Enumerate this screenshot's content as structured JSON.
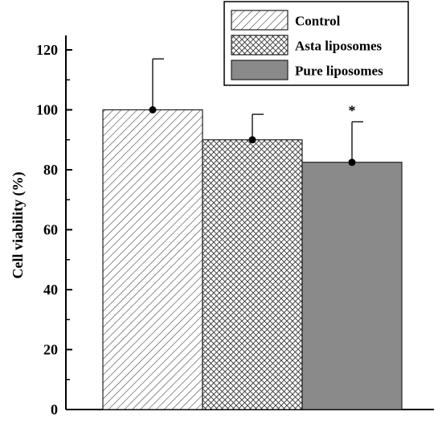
{
  "chart_data": {
    "type": "bar",
    "title": "",
    "xlabel": "",
    "ylabel": "Cell viability (%)",
    "ylim": [
      0,
      120
    ],
    "yticks": [
      0,
      20,
      40,
      60,
      80,
      100,
      120
    ],
    "legend_position": "top-right",
    "series": [
      {
        "name": "Control",
        "value": 100,
        "error": 17,
        "pattern": "diagonal-hatch",
        "color": "#ffffff",
        "annotation": ""
      },
      {
        "name": "Asta liposomes",
        "value": 90,
        "error": 8.5,
        "pattern": "crosshatch",
        "color": "#ffffff",
        "annotation": ""
      },
      {
        "name": "Pure liposomes",
        "value": 82.5,
        "error": 13.5,
        "pattern": "solid",
        "color": "#8a8a8a",
        "annotation": "*"
      }
    ]
  }
}
